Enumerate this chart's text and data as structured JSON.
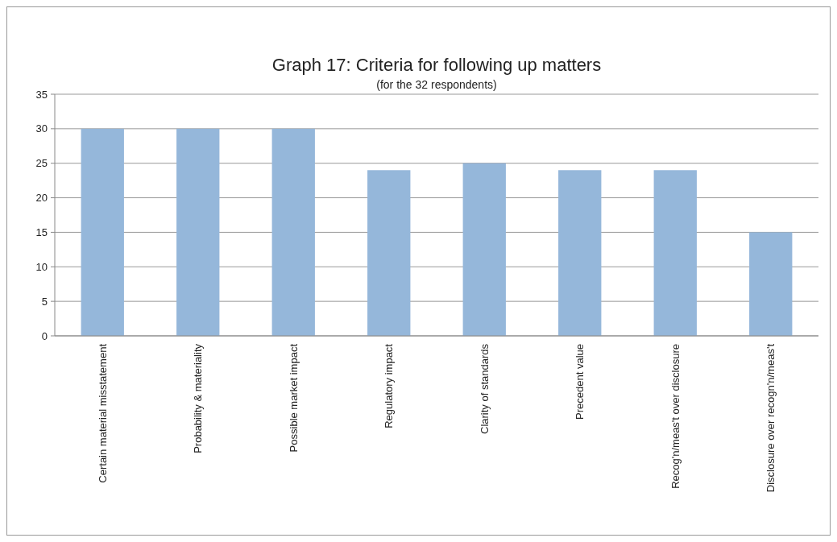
{
  "chart_data": {
    "type": "bar",
    "title": "Graph 17: Criteria for following up matters",
    "subtitle": "(for the 32 respondents)",
    "categories": [
      "Certain material misstatement",
      "Probability & materiality",
      "Possible market impact",
      "Regulatory impact",
      "Clarity of standards",
      "Precedent value",
      "Recog'n/meas't over disclosure",
      "Disclosure over recogn'n/meas't"
    ],
    "values": [
      30,
      30,
      30,
      24,
      25,
      24,
      24,
      15
    ],
    "color": "#95b7da",
    "ylim": [
      0,
      35
    ],
    "yticks": [
      0,
      5,
      10,
      15,
      20,
      25,
      30,
      35
    ],
    "grid": "y"
  }
}
